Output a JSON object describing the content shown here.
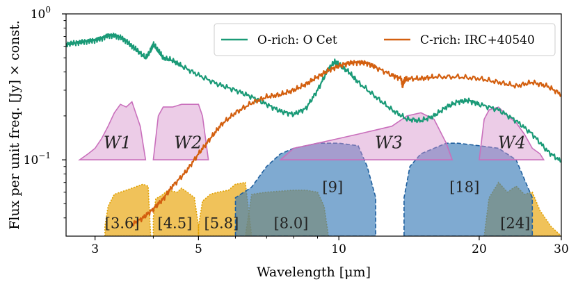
{
  "chart_data": {
    "type": "line",
    "xscale": "log",
    "yscale": "log",
    "xlim": [
      2.6,
      30
    ],
    "ylim": [
      0.03,
      1.0
    ],
    "xlabel": "Wavelength [μm]",
    "ylabel": "Flux per unit freq. [Jy] × const.",
    "xticks": [
      {
        "value": 3,
        "label": "3"
      },
      {
        "value": 5,
        "label": "5"
      },
      {
        "value": 10,
        "label": "10"
      },
      {
        "value": 20,
        "label": "20"
      },
      {
        "value": 30,
        "label": "30"
      }
    ],
    "yticks": [
      {
        "value": 1.0,
        "label": "10",
        "exp": "0"
      },
      {
        "value": 0.1,
        "label": "10",
        "exp": "−1"
      }
    ],
    "legend": {
      "position": "top-right",
      "entries": [
        {
          "label": "O-rich: O Cet",
          "color": "#1a9a77"
        },
        {
          "label": "C-rich: IRC+40540",
          "color": "#d35f0f"
        }
      ]
    },
    "series": [
      {
        "name": "O-rich: O Cet",
        "color": "#1a9a77",
        "x": [
          2.6,
          2.7,
          2.8,
          2.9,
          3.0,
          3.1,
          3.2,
          3.3,
          3.4,
          3.5,
          3.6,
          3.7,
          3.85,
          3.95,
          4.0,
          4.1,
          4.2,
          4.4,
          4.6,
          5.0,
          5.5,
          6.0,
          6.5,
          7.0,
          7.5,
          8.0,
          8.5,
          9.0,
          9.5,
          9.8,
          10.0,
          10.5,
          11.0,
          12.0,
          13.0,
          14.0,
          15.0,
          16.0,
          17.0,
          18.0,
          19.0,
          20.0,
          22.0,
          24.0,
          26.0,
          28.0,
          30.0
        ],
        "y": [
          0.62,
          0.63,
          0.64,
          0.65,
          0.66,
          0.68,
          0.71,
          0.71,
          0.69,
          0.65,
          0.6,
          0.56,
          0.5,
          0.56,
          0.62,
          0.56,
          0.5,
          0.48,
          0.44,
          0.38,
          0.33,
          0.3,
          0.27,
          0.24,
          0.215,
          0.205,
          0.225,
          0.3,
          0.42,
          0.47,
          0.45,
          0.4,
          0.34,
          0.27,
          0.22,
          0.19,
          0.185,
          0.2,
          0.23,
          0.25,
          0.255,
          0.24,
          0.22,
          0.185,
          0.15,
          0.115,
          0.097
        ]
      },
      {
        "name": "C-rich: IRC+40540",
        "color": "#d35f0f",
        "x": [
          3.6,
          3.8,
          4.0,
          4.2,
          4.4,
          4.7,
          5.0,
          5.3,
          5.6,
          6.0,
          6.5,
          7.0,
          7.5,
          8.0,
          8.5,
          9.0,
          9.5,
          10.0,
          10.5,
          11.0,
          11.5,
          12.0,
          13.0,
          13.6,
          13.7,
          13.8,
          14.0,
          15.0,
          16.0,
          18.0,
          20.0,
          22.0,
          24.0,
          26.0,
          28.0,
          30.0
        ],
        "y": [
          0.036,
          0.04,
          0.046,
          0.054,
          0.066,
          0.083,
          0.11,
          0.14,
          0.175,
          0.21,
          0.245,
          0.27,
          0.28,
          0.3,
          0.33,
          0.37,
          0.41,
          0.44,
          0.46,
          0.465,
          0.46,
          0.43,
          0.38,
          0.36,
          0.32,
          0.35,
          0.36,
          0.36,
          0.37,
          0.37,
          0.36,
          0.34,
          0.32,
          0.34,
          0.32,
          0.28
        ]
      }
    ],
    "filter_bands": [
      {
        "label": "[3.6]",
        "group": "IRAC",
        "color": "#e8a202",
        "x": [
          3.15,
          3.2,
          3.3,
          3.4,
          3.5,
          3.6,
          3.7,
          3.8,
          3.9,
          3.95
        ],
        "y": [
          0.035,
          0.048,
          0.058,
          0.06,
          0.062,
          0.064,
          0.066,
          0.068,
          0.066,
          0.03
        ]
      },
      {
        "label": "[4.5]",
        "group": "IRAC",
        "color": "#e8a202",
        "x": [
          4.0,
          4.05,
          4.2,
          4.3,
          4.5,
          4.6,
          4.8,
          4.9,
          5.0
        ],
        "y": [
          0.04,
          0.054,
          0.058,
          0.062,
          0.06,
          0.064,
          0.058,
          0.055,
          0.035
        ]
      },
      {
        "label": "[5.8]",
        "group": "IRAC",
        "color": "#e8a202",
        "x": [
          5.0,
          5.1,
          5.3,
          5.5,
          5.8,
          6.0,
          6.3,
          6.5
        ],
        "y": [
          0.035,
          0.052,
          0.058,
          0.06,
          0.062,
          0.068,
          0.07,
          0.03
        ]
      },
      {
        "label": "[8.0]",
        "group": "IRAC",
        "color": "#e8a202",
        "x": [
          6.3,
          6.5,
          7.0,
          7.5,
          8.0,
          8.5,
          9.0,
          9.3,
          9.5
        ],
        "y": [
          0.03,
          0.058,
          0.06,
          0.061,
          0.062,
          0.062,
          0.06,
          0.048,
          0.03
        ]
      },
      {
        "label": "[24]",
        "group": "MIPS",
        "color": "#e8a202",
        "x": [
          20.5,
          21.0,
          22.0,
          23.0,
          24.0,
          25.0,
          26.0,
          27.0,
          28.5,
          30.0
        ],
        "y": [
          0.03,
          0.055,
          0.07,
          0.06,
          0.066,
          0.058,
          0.06,
          0.045,
          0.035,
          0.03
        ]
      },
      {
        "label": "[9]",
        "group": "AKARI",
        "color": "#3b7cb8",
        "x": [
          6.0,
          6.5,
          7.0,
          7.5,
          8.0,
          8.5,
          9.0,
          10.0,
          11.0,
          11.5,
          12.0
        ],
        "y": [
          0.055,
          0.065,
          0.09,
          0.11,
          0.12,
          0.125,
          0.13,
          0.13,
          0.125,
          0.09,
          0.055
        ]
      },
      {
        "label": "[18]",
        "group": "AKARI",
        "color": "#3b7cb8",
        "x": [
          13.8,
          14.2,
          15.0,
          16.0,
          17.0,
          18.0,
          20.0,
          22.0,
          24.0,
          26.0
        ],
        "y": [
          0.055,
          0.09,
          0.11,
          0.12,
          0.13,
          0.13,
          0.125,
          0.12,
          0.1,
          0.055
        ]
      },
      {
        "label": "W1",
        "group": "WISE",
        "color": "#d58fc9",
        "x": [
          2.78,
          2.9,
          3.0,
          3.1,
          3.2,
          3.3,
          3.4,
          3.5,
          3.6,
          3.75,
          3.85
        ],
        "y": [
          0.1,
          0.11,
          0.12,
          0.14,
          0.17,
          0.21,
          0.24,
          0.23,
          0.25,
          0.17,
          0.1
        ]
      },
      {
        "label": "W2",
        "group": "WISE",
        "color": "#d58fc9",
        "x": [
          4.0,
          4.1,
          4.2,
          4.4,
          4.6,
          4.8,
          5.0,
          5.1,
          5.25
        ],
        "y": [
          0.1,
          0.2,
          0.23,
          0.23,
          0.24,
          0.24,
          0.24,
          0.2,
          0.1
        ]
      },
      {
        "label": "W3",
        "group": "WISE",
        "color": "#d58fc9",
        "x": [
          7.5,
          8.0,
          9.0,
          10.0,
          11.0,
          12.0,
          13.0,
          14.0,
          15.0,
          16.0,
          17.0,
          17.5
        ],
        "y": [
          0.1,
          0.12,
          0.13,
          0.14,
          0.15,
          0.16,
          0.17,
          0.2,
          0.21,
          0.19,
          0.13,
          0.1
        ]
      },
      {
        "label": "W4",
        "group": "WISE",
        "color": "#d58fc9",
        "x": [
          20.0,
          20.5,
          21.0,
          22.0,
          23.0,
          24.0,
          25.0,
          26.0,
          27.0,
          27.5
        ],
        "y": [
          0.1,
          0.19,
          0.22,
          0.23,
          0.2,
          0.18,
          0.15,
          0.12,
          0.11,
          0.1
        ]
      }
    ],
    "band_labels": [
      {
        "label": "W1",
        "x": 3.35,
        "y": 0.12,
        "italic": true
      },
      {
        "label": "W2",
        "x": 4.75,
        "y": 0.12,
        "italic": true
      },
      {
        "label": "W3",
        "x": 12.8,
        "y": 0.12,
        "italic": true
      },
      {
        "label": "W4",
        "x": 23.5,
        "y": 0.12,
        "italic": true
      },
      {
        "label": "[9]",
        "x": 9.7,
        "y": 0.06,
        "italic": false
      },
      {
        "label": "[18]",
        "x": 18.6,
        "y": 0.06,
        "italic": false
      },
      {
        "label": "[3.6]",
        "x": 3.43,
        "y": 0.034,
        "italic": false
      },
      {
        "label": "[4.5]",
        "x": 4.45,
        "y": 0.034,
        "italic": false
      },
      {
        "label": "[5.8]",
        "x": 5.6,
        "y": 0.034,
        "italic": false
      },
      {
        "label": "[8.0]",
        "x": 7.9,
        "y": 0.034,
        "italic": false
      },
      {
        "label": "[24]",
        "x": 23.9,
        "y": 0.034,
        "italic": false
      }
    ]
  }
}
